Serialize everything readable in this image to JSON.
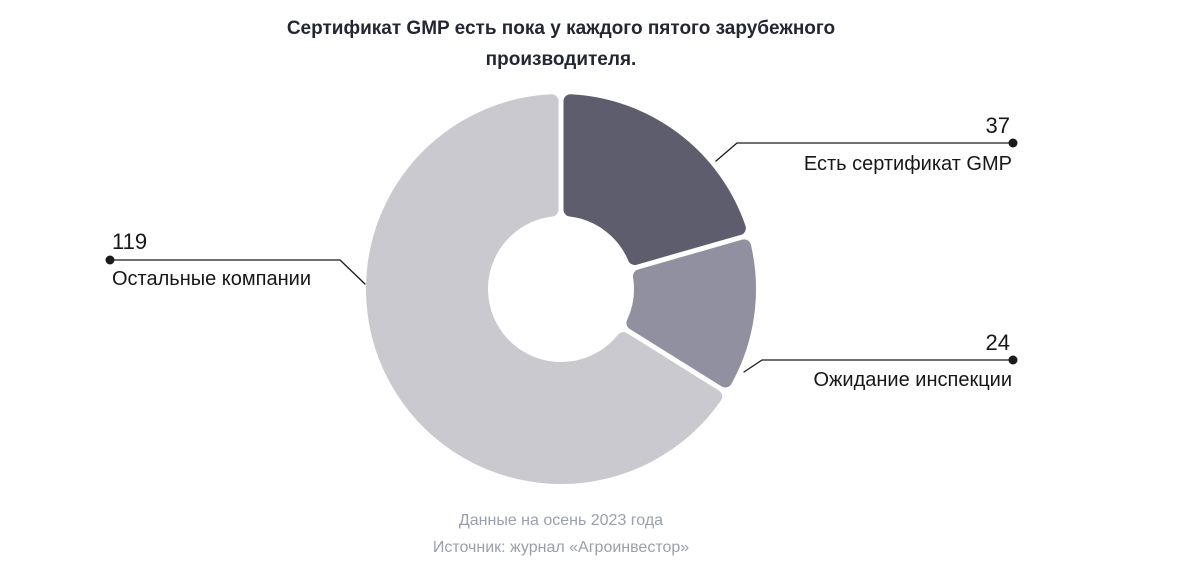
{
  "title": {
    "line1": "Сертификат GMP есть пока у каждого пятого зарубежного",
    "line2": "производителя."
  },
  "chart_data": {
    "type": "pie",
    "subtype": "donut",
    "title": "Сертификат GMP есть пока у каждого пятого зарубежного производителя.",
    "total": 180,
    "start_angle_deg": 0,
    "direction": "clockwise",
    "donut_hole_ratio": 0.37,
    "segments": [
      {
        "key": "gmp",
        "label": "Есть сертификат GMP",
        "value": 37,
        "color": "#5e5d6d"
      },
      {
        "key": "inspection",
        "label": "Ожидание инспекции",
        "value": 24,
        "color": "#9190a0"
      },
      {
        "key": "others",
        "label": "Остальные компании",
        "value": 119,
        "color": "#c9c9cf"
      }
    ]
  },
  "footer": {
    "line1": "Данные на осень 2023 года",
    "line2": "Источник: журнал «Агроинвестор»"
  },
  "colors": {
    "background": "#ffffff",
    "title_text": "#232733",
    "callout_text": "#171717",
    "leader_line": "#1a1a1a",
    "footer_text": "#9aa0ab"
  }
}
